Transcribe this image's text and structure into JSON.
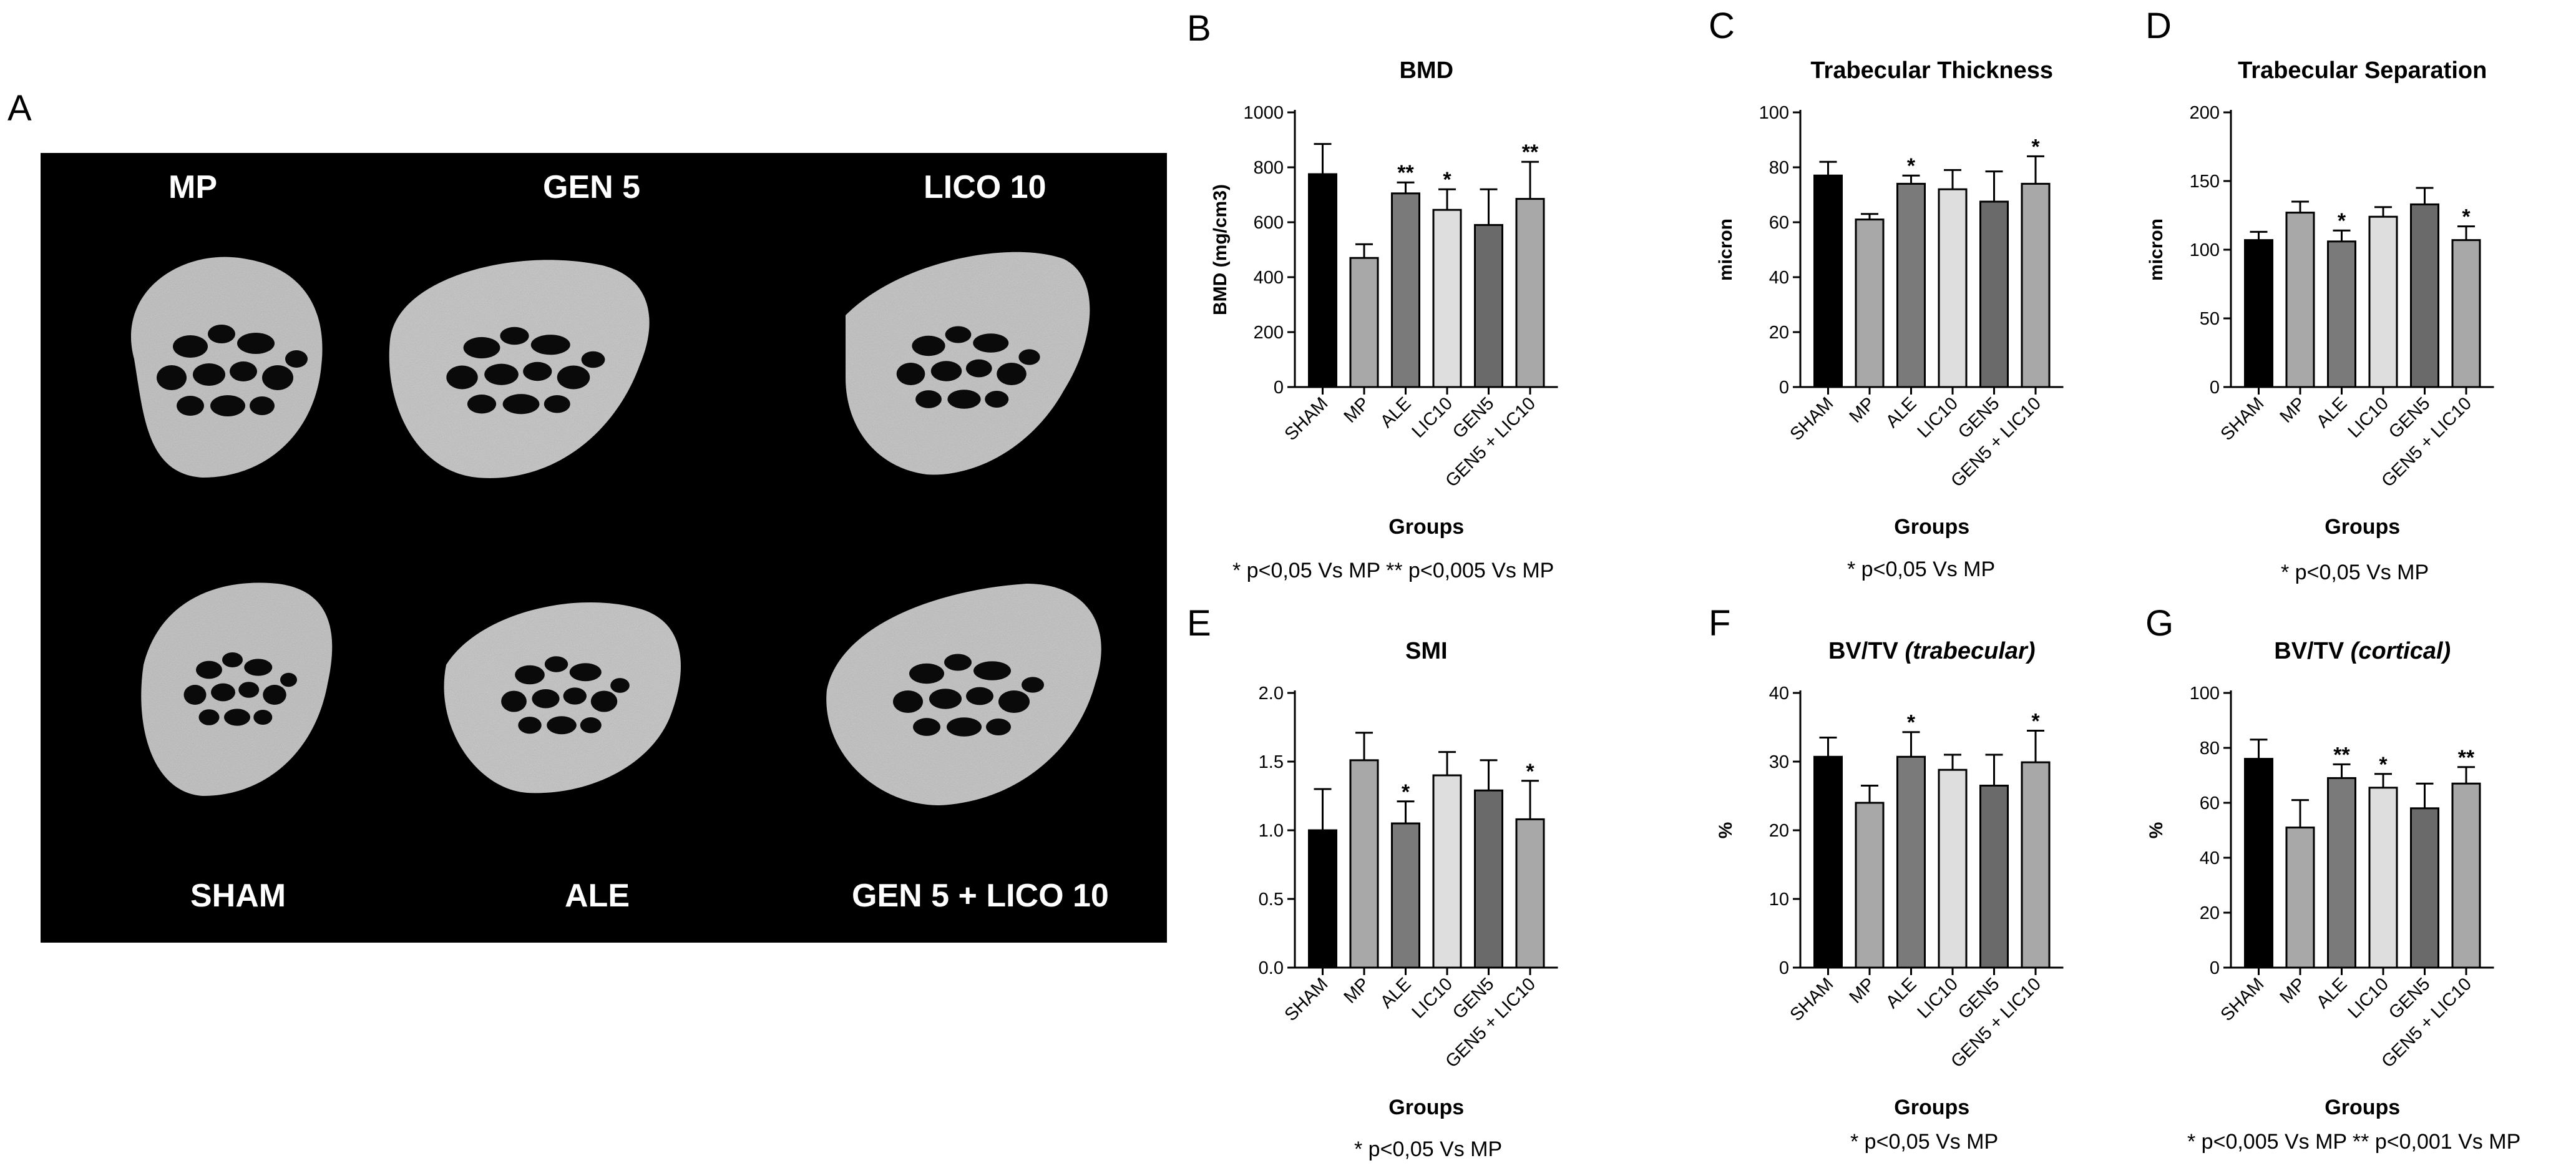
{
  "figure_panels": {
    "a": "A",
    "b": "B",
    "c": "C",
    "d": "D",
    "e": "E",
    "f": "F",
    "g": "G"
  },
  "micrograph": {
    "labels": [
      "MP",
      "GEN 5",
      "LICO 10",
      "SHAM",
      "ALE",
      "GEN 5 + LICO 10"
    ]
  },
  "chart_data": [
    {
      "id": "B",
      "type": "bar",
      "title": "BMD",
      "title_italic": "",
      "xlabel": "Groups",
      "ylabel": "BMD (mg/cm3)",
      "categories": [
        "SHAM",
        "MP",
        "ALE",
        "LIC10",
        "GEN5",
        "GEN5 + LIC10"
      ],
      "values": [
        775,
        470,
        705,
        645,
        590,
        685
      ],
      "errors": [
        110,
        50,
        40,
        75,
        130,
        135
      ],
      "significance": [
        "",
        "",
        "**",
        "*",
        "",
        "**"
      ],
      "ylim": [
        0,
        1000
      ],
      "yticks": [
        0,
        200,
        400,
        600,
        800,
        1000
      ],
      "bar_colors": [
        "#000000",
        "#a8a8a8",
        "#7a7a7a",
        "#dedede",
        "#6a6a6a",
        "#a8a8a8"
      ],
      "footnote": "*   p<0,05 Vs MP       **  p<0,005 Vs MP"
    },
    {
      "id": "C",
      "type": "bar",
      "title": "Trabecular Thickness",
      "title_italic": "",
      "xlabel": "Groups",
      "ylabel": "micron",
      "categories": [
        "SHAM",
        "MP",
        "ALE",
        "LIC10",
        "GEN5",
        "GEN5 + LIC10"
      ],
      "values": [
        77,
        61,
        74,
        72,
        67.5,
        74
      ],
      "errors": [
        5,
        2,
        3,
        7,
        11,
        10
      ],
      "significance": [
        "",
        "",
        "*",
        "",
        "",
        "*"
      ],
      "ylim": [
        0,
        100
      ],
      "yticks": [
        0,
        20,
        40,
        60,
        80,
        100
      ],
      "bar_colors": [
        "#000000",
        "#a8a8a8",
        "#7a7a7a",
        "#dedede",
        "#6a6a6a",
        "#a8a8a8"
      ],
      "footnote": "*   p<0,05 Vs MP"
    },
    {
      "id": "D",
      "type": "bar",
      "title": "Trabecular Separation",
      "title_italic": "",
      "xlabel": "Groups",
      "ylabel": "micron",
      "categories": [
        "SHAM",
        "MP",
        "ALE",
        "LIC10",
        "GEN5",
        "GEN5 + LIC10"
      ],
      "values": [
        107,
        127,
        106,
        124,
        133,
        107
      ],
      "errors": [
        6,
        8,
        8,
        7,
        12,
        10
      ],
      "significance": [
        "",
        "",
        "*",
        "",
        "",
        "*"
      ],
      "ylim": [
        0,
        200
      ],
      "yticks": [
        0,
        50,
        100,
        150,
        200
      ],
      "bar_colors": [
        "#000000",
        "#a8a8a8",
        "#7a7a7a",
        "#dedede",
        "#6a6a6a",
        "#a8a8a8"
      ],
      "footnote": "*   p<0,05 Vs MP"
    },
    {
      "id": "E",
      "type": "bar",
      "title": "SMI",
      "title_italic": "",
      "xlabel": "Groups",
      "ylabel": "",
      "categories": [
        "SHAM",
        "MP",
        "ALE",
        "LIC10",
        "GEN5",
        "GEN5 + LIC10"
      ],
      "values": [
        1.0,
        1.51,
        1.05,
        1.4,
        1.29,
        1.08
      ],
      "errors": [
        0.3,
        0.2,
        0.16,
        0.17,
        0.22,
        0.28
      ],
      "significance": [
        "",
        "",
        "*",
        "",
        "",
        "*"
      ],
      "ylim": [
        0,
        2.0
      ],
      "yticks": [
        0.0,
        0.5,
        1.0,
        1.5,
        2.0
      ],
      "tick_decimals": 1,
      "bar_colors": [
        "#000000",
        "#a8a8a8",
        "#7a7a7a",
        "#dedede",
        "#6a6a6a",
        "#a8a8a8"
      ],
      "footnote": "*   p<0,05 Vs MP"
    },
    {
      "id": "F",
      "type": "bar",
      "title": "BV/TV",
      "title_italic": "(trabecular)",
      "xlabel": "Groups",
      "ylabel": "%",
      "categories": [
        "SHAM",
        "MP",
        "ALE",
        "LIC10",
        "GEN5",
        "GEN5 + LIC10"
      ],
      "values": [
        30.7,
        24,
        30.7,
        28.8,
        26.5,
        29.9
      ],
      "errors": [
        2.8,
        2.5,
        3.6,
        2.2,
        4.5,
        4.6
      ],
      "significance": [
        "",
        "",
        "*",
        "",
        "",
        "*"
      ],
      "ylim": [
        0,
        40
      ],
      "yticks": [
        0,
        10,
        20,
        30,
        40
      ],
      "bar_colors": [
        "#000000",
        "#a8a8a8",
        "#7a7a7a",
        "#dedede",
        "#6a6a6a",
        "#a8a8a8"
      ],
      "footnote": "* p<0,05 Vs MP"
    },
    {
      "id": "G",
      "type": "bar",
      "title": "BV/TV",
      "title_italic": "(cortical)",
      "xlabel": "Groups",
      "ylabel": "%",
      "categories": [
        "SHAM",
        "MP",
        "ALE",
        "LIC10",
        "GEN5",
        "GEN5 + LIC10"
      ],
      "values": [
        76,
        51,
        69,
        65.5,
        58,
        67
      ],
      "errors": [
        7,
        10,
        5,
        5,
        9,
        6
      ],
      "significance": [
        "",
        "",
        "**",
        "*",
        "",
        "**"
      ],
      "ylim": [
        0,
        100
      ],
      "yticks": [
        0,
        20,
        40,
        60,
        80,
        100
      ],
      "bar_colors": [
        "#000000",
        "#a8a8a8",
        "#7a7a7a",
        "#dedede",
        "#6a6a6a",
        "#a8a8a8"
      ],
      "footnote": "* p<0,005 Vs MP    ** p<0,001 Vs MP"
    }
  ]
}
